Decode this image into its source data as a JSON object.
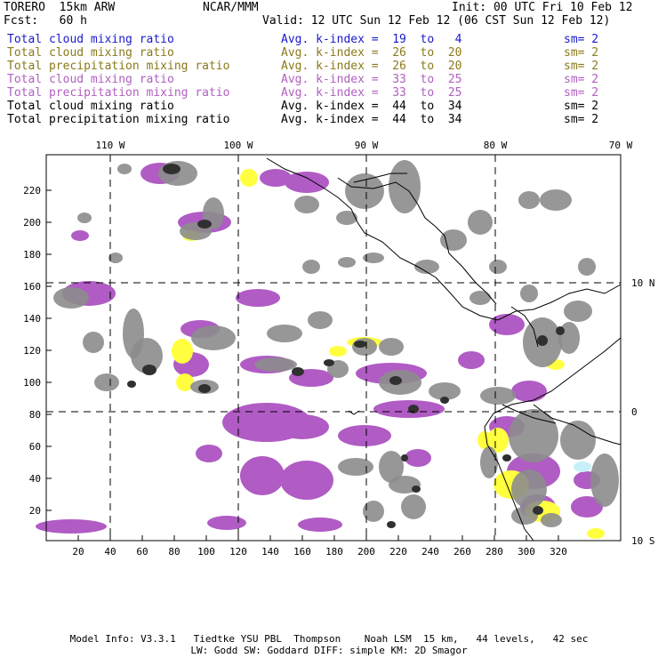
{
  "header": {
    "model": "TORERO  15km ARW",
    "org": "NCAR/MMM",
    "init": "Init: 00 UTC Fri 10 Feb 12",
    "fcst": "Fcst:   60 h",
    "valid": "Valid: 12 UTC Sun 12 Feb 12 (06 CST Sun 12 Feb 12)"
  },
  "legend": [
    {
      "field": "Total cloud mixing ratio",
      "kidx": "Avg. k-index =  19  to   4",
      "sm": "sm= 2",
      "color": "#1a1acc"
    },
    {
      "field": "Total cloud mixing ratio",
      "kidx": "Avg. k-index =  26  to  20",
      "sm": "sm= 2",
      "color": "#8a7a1a"
    },
    {
      "field": "Total precipitation mixing ratio",
      "kidx": "Avg. k-index =  26  to  20",
      "sm": "sm= 2",
      "color": "#8a7a1a"
    },
    {
      "field": "Total cloud mixing ratio",
      "kidx": "Avg. k-index =  33  to  25",
      "sm": "sm= 2",
      "color": "#b060c0"
    },
    {
      "field": "Total precipitation mixing ratio",
      "kidx": "Avg. k-index =  33  to  25",
      "sm": "sm= 2",
      "color": "#b060c0"
    },
    {
      "field": "Total cloud mixing ratio",
      "kidx": "Avg. k-index =  44  to  34",
      "sm": "sm= 2",
      "color": "#000000"
    },
    {
      "field": "Total precipitation mixing ratio",
      "kidx": "Avg. k-index =  44  to  34",
      "sm": "sm= 2",
      "color": "#000000"
    }
  ],
  "map": {
    "lon_labels": [
      "110 W",
      "100 W",
      "90 W",
      "80 W",
      "70 W"
    ],
    "lat_labels": [
      "10 N",
      "0",
      "10 S"
    ],
    "x_ticks": [
      "20",
      "40",
      "60",
      "80",
      "100",
      "120",
      "140",
      "160",
      "180",
      "200",
      "220",
      "240",
      "260",
      "280",
      "300",
      "320"
    ],
    "y_ticks": [
      "20",
      "40",
      "60",
      "80",
      "100",
      "120",
      "140",
      "160",
      "180",
      "200",
      "220"
    ],
    "colors": {
      "gray": "#8c8c8c",
      "dark": "#303030",
      "purple": "#b05cc4",
      "yellow": "#ffff40",
      "cyan": "#c8f0f8"
    }
  },
  "footer": {
    "line1": "Model Info: V3.3.1   Tiedtke YSU PBL  Thompson    Noah LSM  15 km,   44 levels,   42 sec",
    "line2": "LW: Godd SW: Goddard DIFF: simple KM: 2D Smagor"
  }
}
